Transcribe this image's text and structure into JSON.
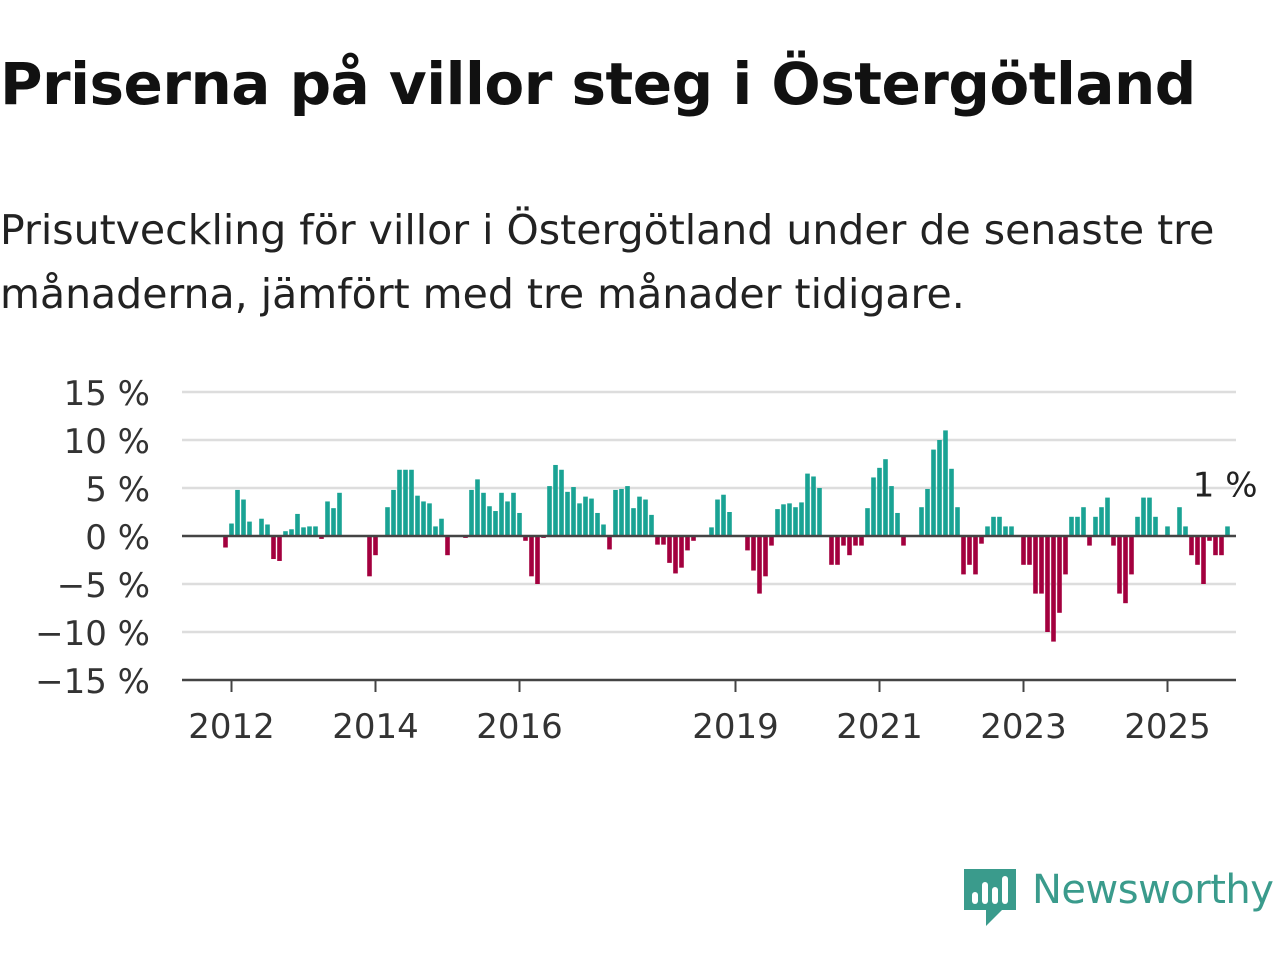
{
  "title": "Priserna på villor steg i Östergötland",
  "subtitle": "Prisutveckling för villor i Östergötland under de senaste tre månaderna, jämfört med tre månader tidigare.",
  "brand": {
    "name": "Newsworthy",
    "icon": "newsworthy-logo-icon",
    "color": "#3a9b8c"
  },
  "colors": {
    "positive": "#1aa394",
    "negative": "#a3003e",
    "grid": "#dddddd",
    "zero_line": "#444444",
    "text": "#333333"
  },
  "chart_data": {
    "type": "bar",
    "y_unit": "%",
    "ylim": [
      -15,
      15
    ],
    "y_ticks": [
      15,
      10,
      5,
      0,
      -5,
      -10,
      -15
    ],
    "y_tick_labels": [
      "15 %",
      "10 %",
      "5 %",
      "0 %",
      "−5 %",
      "−10 %",
      "−15 %"
    ],
    "x_ticks": [
      {
        "label": "2012",
        "date": "2012-01"
      },
      {
        "label": "2014",
        "date": "2014-01"
      },
      {
        "label": "2016",
        "date": "2016-01"
      },
      {
        "label": "2019",
        "date": "2019-01"
      },
      {
        "label": "2021",
        "date": "2021-01"
      },
      {
        "label": "2023",
        "date": "2023-01"
      },
      {
        "label": "2025",
        "date": "2025-01"
      }
    ],
    "grid": true,
    "start_month": "2011-10",
    "last_label": "1 %",
    "values": [
      0,
      0,
      -1.2,
      1.3,
      4.8,
      3.8,
      1.5,
      0,
      1.8,
      1.2,
      -2.4,
      -2.6,
      0.5,
      0.7,
      2.3,
      0.9,
      1,
      1,
      -0.3,
      3.6,
      2.9,
      4.5,
      0,
      0,
      0,
      0,
      -4.2,
      -2,
      0,
      3,
      4.8,
      6.9,
      6.9,
      6.9,
      4.2,
      3.6,
      3.4,
      1,
      1.8,
      -2,
      0,
      0,
      -0.2,
      4.8,
      5.9,
      4.5,
      3.1,
      2.6,
      4.5,
      3.6,
      4.5,
      2.4,
      -0.5,
      -4.2,
      -5,
      -0.2,
      5.2,
      7.4,
      6.9,
      4.6,
      5.1,
      3.4,
      4.1,
      3.9,
      2.4,
      1.2,
      -1.4,
      4.8,
      4.9,
      5.2,
      2.9,
      4.1,
      3.8,
      2.2,
      -0.9,
      -0.9,
      -2.8,
      -3.9,
      -3.3,
      -1.5,
      -0.5,
      0,
      0,
      0.9,
      3.8,
      4.3,
      2.5,
      0,
      0,
      -1.5,
      -3.6,
      -6,
      -4.2,
      -1,
      2.8,
      3.3,
      3.4,
      3,
      3.5,
      6.5,
      6.2,
      5,
      0,
      -3,
      -3,
      -1,
      -2,
      -1,
      -1,
      2.9,
      6.1,
      7.1,
      8,
      5.2,
      2.4,
      -1,
      0,
      0,
      3,
      4.9,
      9,
      10,
      11,
      7,
      3,
      -4,
      -3,
      -4,
      -0.8,
      1,
      2,
      2,
      1,
      1,
      0,
      -3,
      -3,
      -6,
      -6,
      -10,
      -11,
      -8,
      -4,
      2,
      2,
      3,
      -1,
      2,
      3,
      4,
      -1,
      -6,
      -7,
      -4,
      2,
      4,
      4,
      2,
      0,
      1,
      0,
      3,
      1,
      -2,
      -3,
      -5,
      -0.5,
      -2,
      -2,
      1
    ]
  }
}
